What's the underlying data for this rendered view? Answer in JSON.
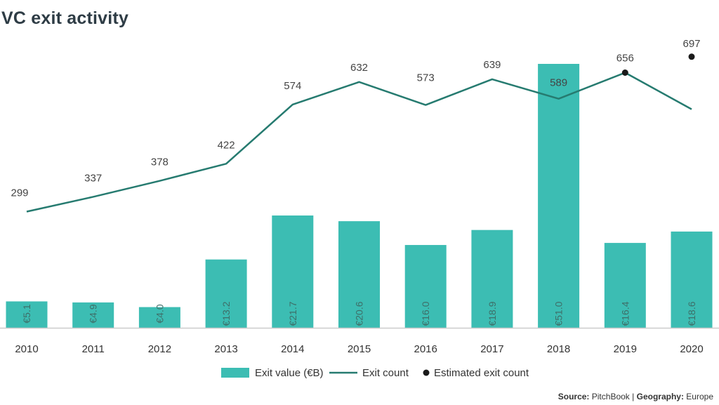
{
  "title": "VC exit activity",
  "source": {
    "source_label": "Source:",
    "source_value": "PitchBook",
    "separator": "|",
    "geo_label": "Geography:",
    "geo_value": "Europe"
  },
  "colors": {
    "bar": "#3cbdb3",
    "line": "#267b70",
    "dot": "#1a1a1a",
    "axis": "#cccccc",
    "bar_label": "#3e6e68"
  },
  "chart_data": {
    "type": "bar+line",
    "categories": [
      "2010",
      "2011",
      "2012",
      "2013",
      "2014",
      "2015",
      "2016",
      "2017",
      "2018",
      "2019",
      "2020"
    ],
    "series": [
      {
        "name": "Exit value (€B)",
        "type": "bar",
        "values": [
          5.1,
          4.9,
          4.0,
          13.2,
          21.7,
          20.6,
          16.0,
          18.9,
          51.0,
          16.4,
          18.6
        ],
        "labels": [
          "€5.1",
          "€4.9",
          "€4.0",
          "€13.2",
          "€21.7",
          "€20.6",
          "€16.0",
          "€18.9",
          "€51.0",
          "€16.4",
          "€18.6"
        ]
      },
      {
        "name": "Exit count",
        "type": "line",
        "values": [
          299,
          337,
          378,
          422,
          574,
          632,
          573,
          639,
          589,
          656,
          562
        ],
        "labels": [
          "299",
          "337",
          "378",
          "422",
          "574",
          "632",
          "573",
          "639",
          "589",
          "656",
          ""
        ]
      },
      {
        "name": "Estimated exit count",
        "type": "scatter",
        "points": [
          {
            "x": "2019",
            "y": 656
          },
          {
            "x": "2020",
            "y": 697
          }
        ],
        "labels": [
          "",
          "697"
        ]
      }
    ],
    "legend": [
      "Exit value (€B)",
      "Exit count",
      "Estimated exit count"
    ],
    "legend_position": "bottom",
    "grid": false,
    "bar_ylim": [
      0,
      51.0
    ],
    "line_ylim": [
      0,
      750
    ]
  }
}
